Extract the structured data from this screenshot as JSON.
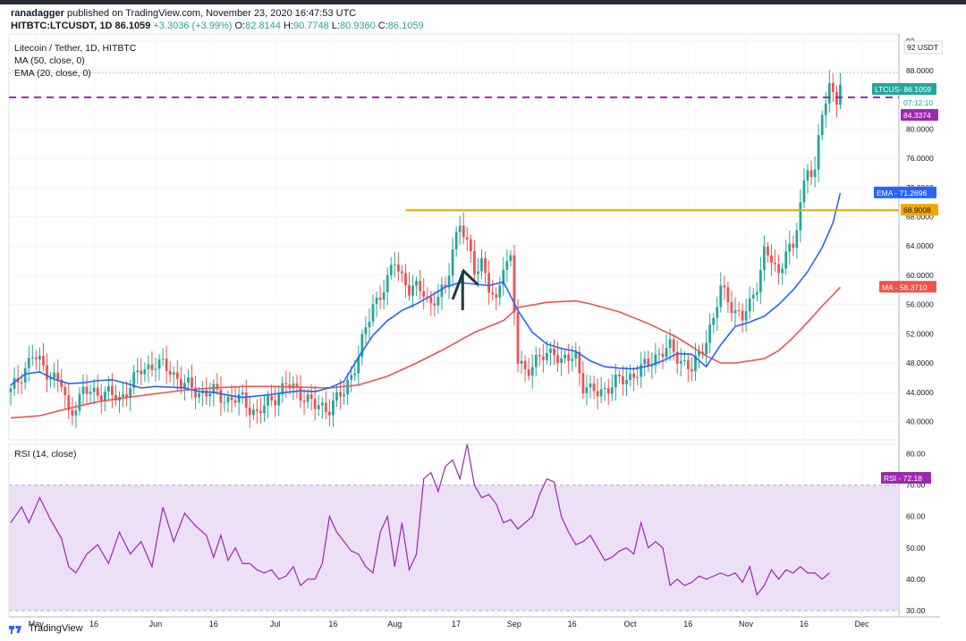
{
  "header": {
    "user": "ranadagger",
    "published": "published on TradingView.com, November 23, 2020 16:47:53 UTC",
    "symbol": "HITBTC:LTCUSDT, 1D",
    "last": "86.1059",
    "change": "+3.3036 (+3.99%)",
    "o_label": "O:",
    "o": "82.8144",
    "h_label": "H:",
    "h": "90.7748",
    "l_label": "L:",
    "l": "80.9360",
    "c_label": "C:",
    "c": "86.1059"
  },
  "legend": {
    "title": "Litecoin / Tether, 1D, HITBTC",
    "ma": "MA (50, close, 0)",
    "ema": "EMA (20, close, 0)",
    "rsi": "RSI (14, close)"
  },
  "badges": {
    "currency": "USDT",
    "ltc_price": "LTCUS- 86.1059",
    "countdown": "07:12:10",
    "purple_level": "84.3374",
    "ema": "EMA - 71.2696",
    "orange_level": "68.9008",
    "ma": "MA - 58.3710",
    "rsi": "RSI - 72.18"
  },
  "colors": {
    "up": "#26a69a",
    "down": "#ef5350",
    "ema": "#2962ff",
    "ma": "#ef5350",
    "resistance": "#f7a600",
    "level": "#9c27b0",
    "rsi": "#9c27b0",
    "rsi_band": "#ebe0f5"
  },
  "chart_data": [
    {
      "type": "candlestick",
      "title": "Litecoin / Tether, 1D, HITBTC",
      "ylabel": "USDT",
      "ylim": [
        37.5,
        93
      ],
      "y_ticks": [
        40,
        44,
        48,
        52,
        56,
        60,
        64,
        68,
        72,
        76,
        80,
        88,
        92
      ],
      "y_tick_labels": [
        "40.0000",
        "44.0000",
        "48.0000",
        "52.0000",
        "56.0000",
        "60.0000",
        "64.0000",
        "68.0000",
        "72.0000",
        "76.0000",
        "80.0000",
        "88.0000",
        "92"
      ],
      "x_tick_labels": [
        "May",
        "16",
        "Jun",
        "16",
        "Jul",
        "16",
        "Aug",
        "17",
        "Sep",
        "16",
        "Oct",
        "16",
        "Nov",
        "16",
        "Dec"
      ],
      "ema_path": [
        [
          0,
          45
        ],
        [
          4,
          46.5
        ],
        [
          8,
          46.8
        ],
        [
          12,
          45.8
        ],
        [
          16,
          45.2
        ],
        [
          20,
          45.3
        ],
        [
          24,
          45.6
        ],
        [
          28,
          45.7
        ],
        [
          32,
          45.2
        ],
        [
          36,
          44.6
        ],
        [
          40,
          44.8
        ],
        [
          44,
          44.7
        ],
        [
          48,
          44.6
        ],
        [
          52,
          44.1
        ],
        [
          56,
          44.0
        ],
        [
          60,
          43.6
        ],
        [
          64,
          43.3
        ],
        [
          68,
          43.5
        ],
        [
          72,
          43.7
        ],
        [
          76,
          44.0
        ],
        [
          80,
          44.2
        ],
        [
          84,
          44.1
        ],
        [
          88,
          44.6
        ],
        [
          92,
          45.5
        ],
        [
          96,
          48.8
        ],
        [
          100,
          51.8
        ],
        [
          104,
          53.8
        ],
        [
          108,
          55.2
        ],
        [
          112,
          56.1
        ],
        [
          116,
          57.2
        ],
        [
          120,
          58.4
        ],
        [
          124,
          59.0
        ],
        [
          128,
          58.8
        ],
        [
          132,
          58.6
        ],
        [
          136,
          59.1
        ],
        [
          140,
          55.2
        ],
        [
          144,
          52.2
        ],
        [
          148,
          50.6
        ],
        [
          152,
          50.0
        ],
        [
          156,
          49.6
        ],
        [
          160,
          48.3
        ],
        [
          164,
          47.5
        ],
        [
          168,
          47.3
        ],
        [
          172,
          47.2
        ],
        [
          176,
          47.6
        ],
        [
          180,
          48.3
        ],
        [
          184,
          49.3
        ],
        [
          188,
          49.2
        ],
        [
          192,
          47.5
        ],
        [
          196,
          50.5
        ],
        [
          200,
          53.0
        ],
        [
          204,
          53.6
        ],
        [
          208,
          54.4
        ],
        [
          212,
          56.0
        ],
        [
          216,
          58.0
        ],
        [
          220,
          60.5
        ],
        [
          224,
          63.8
        ],
        [
          227,
          67.2
        ],
        [
          229,
          71.27
        ]
      ],
      "ma_path": [
        [
          0,
          40.5
        ],
        [
          8,
          40.8
        ],
        [
          16,
          41.8
        ],
        [
          24,
          42.7
        ],
        [
          32,
          43.3
        ],
        [
          40,
          43.8
        ],
        [
          48,
          44.3
        ],
        [
          56,
          44.6
        ],
        [
          64,
          44.8
        ],
        [
          72,
          44.8
        ],
        [
          80,
          44.7
        ],
        [
          88,
          44.6
        ],
        [
          96,
          45.0
        ],
        [
          104,
          46.2
        ],
        [
          112,
          48.0
        ],
        [
          120,
          50.0
        ],
        [
          128,
          52.2
        ],
        [
          136,
          53.8
        ],
        [
          140,
          55.6
        ],
        [
          148,
          56.3
        ],
        [
          156,
          56.5
        ],
        [
          160,
          56.1
        ],
        [
          168,
          55.0
        ],
        [
          176,
          53.4
        ],
        [
          184,
          51.5
        ],
        [
          192,
          49.0
        ],
        [
          196,
          48.0
        ],
        [
          200,
          48.0
        ],
        [
          208,
          48.6
        ],
        [
          212,
          49.7
        ],
        [
          216,
          51.5
        ],
        [
          220,
          53.6
        ],
        [
          224,
          55.8
        ],
        [
          229,
          58.37
        ]
      ],
      "resistance_level": 68.9008,
      "purple_level": 84.3374,
      "current_price": 86.1059,
      "arrow": {
        "from": [
          122,
          56.7
        ],
        "peak": [
          125,
          60.6
        ],
        "to": [
          129,
          58.7
        ]
      }
    },
    {
      "type": "line",
      "title": "RSI (14, close)",
      "ylim": [
        28,
        83
      ],
      "y_ticks": [
        30,
        40,
        50,
        60,
        70,
        80
      ],
      "y_tick_labels": [
        "30.00",
        "40.00",
        "50.00",
        "60.00",
        "70.00",
        "80.00"
      ],
      "band": [
        30,
        70
      ],
      "last_value": 72.18,
      "rsi_path": [
        [
          0,
          58
        ],
        [
          3,
          63
        ],
        [
          5,
          58
        ],
        [
          8,
          66
        ],
        [
          11,
          59
        ],
        [
          14,
          53
        ],
        [
          16,
          44
        ],
        [
          18,
          42
        ],
        [
          21,
          48
        ],
        [
          24,
          51
        ],
        [
          27,
          45
        ],
        [
          30,
          55
        ],
        [
          33,
          48
        ],
        [
          36,
          52
        ],
        [
          39,
          44
        ],
        [
          42,
          63
        ],
        [
          45,
          52
        ],
        [
          48,
          61
        ],
        [
          51,
          57
        ],
        [
          54,
          54
        ],
        [
          56,
          47
        ],
        [
          58,
          54
        ],
        [
          60,
          46
        ],
        [
          62,
          50
        ],
        [
          64,
          45
        ],
        [
          66,
          45
        ],
        [
          68,
          43
        ],
        [
          70,
          42
        ],
        [
          72,
          43
        ],
        [
          74,
          40
        ],
        [
          76,
          41
        ],
        [
          78,
          44
        ],
        [
          80,
          38
        ],
        [
          82,
          40
        ],
        [
          84,
          40
        ],
        [
          86,
          45
        ],
        [
          88,
          60
        ],
        [
          90,
          55
        ],
        [
          92,
          52
        ],
        [
          94,
          49
        ],
        [
          96,
          48
        ],
        [
          98,
          44
        ],
        [
          100,
          42
        ],
        [
          102,
          55
        ],
        [
          104,
          60
        ],
        [
          106,
          44
        ],
        [
          108,
          58
        ],
        [
          110,
          43
        ],
        [
          112,
          48
        ],
        [
          114,
          72
        ],
        [
          116,
          74
        ],
        [
          118,
          68
        ],
        [
          120,
          76
        ],
        [
          122,
          78
        ],
        [
          124,
          72
        ],
        [
          126,
          83
        ],
        [
          128,
          70
        ],
        [
          130,
          66
        ],
        [
          132,
          67
        ],
        [
          134,
          64
        ],
        [
          136,
          58
        ],
        [
          138,
          59
        ],
        [
          140,
          56
        ],
        [
          142,
          58
        ],
        [
          144,
          60
        ],
        [
          146,
          67
        ],
        [
          148,
          72
        ],
        [
          150,
          71
        ],
        [
          152,
          60
        ],
        [
          154,
          55
        ],
        [
          156,
          51
        ],
        [
          158,
          52
        ],
        [
          160,
          54
        ],
        [
          162,
          50
        ],
        [
          164,
          46
        ],
        [
          166,
          47
        ],
        [
          168,
          49
        ],
        [
          170,
          50
        ],
        [
          172,
          48
        ],
        [
          174,
          58
        ],
        [
          176,
          50
        ],
        [
          178,
          52
        ],
        [
          180,
          50
        ],
        [
          182,
          38
        ],
        [
          184,
          40
        ],
        [
          186,
          38
        ],
        [
          188,
          39
        ],
        [
          190,
          41
        ],
        [
          192,
          40
        ],
        [
          194,
          41
        ],
        [
          196,
          42
        ],
        [
          198,
          41
        ],
        [
          200,
          42
        ],
        [
          202,
          39
        ],
        [
          204,
          44
        ],
        [
          206,
          35
        ],
        [
          208,
          38
        ],
        [
          210,
          43
        ],
        [
          212,
          40
        ],
        [
          214,
          43
        ],
        [
          216,
          42
        ],
        [
          218,
          44
        ],
        [
          220,
          42
        ],
        [
          222,
          42
        ],
        [
          224,
          40
        ],
        [
          226,
          42
        ]
      ]
    }
  ]
}
